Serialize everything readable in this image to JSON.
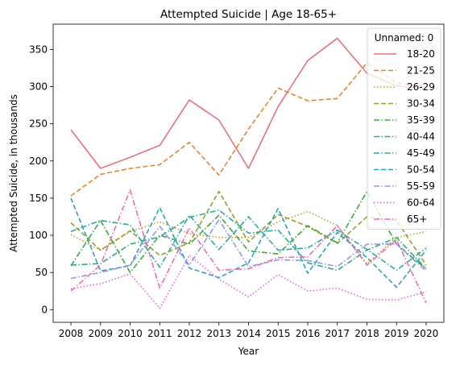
{
  "chart_data": {
    "type": "line",
    "title": "Attempted Suicide | Age 18-65+",
    "xlabel": "Year",
    "ylabel": "Attempted Suicide, in thousands",
    "x": [
      "2008",
      "2009",
      "2010",
      "2011",
      "2012",
      "2013",
      "2014",
      "2015",
      "2016",
      "2017",
      "2018",
      "2019",
      "2020"
    ],
    "ylim": [
      -17,
      384
    ],
    "yticks": [
      0,
      50,
      100,
      150,
      200,
      250,
      300,
      350
    ],
    "legend_title": "Unnamed: 0",
    "legend_position": "top-right",
    "grid": false,
    "series": [
      {
        "name": "18-20",
        "color": "#e8707e",
        "dash": "solid",
        "values": [
          242,
          190,
          205,
          221,
          282,
          255,
          190,
          273,
          335,
          365,
          318,
          301,
          297
        ]
      },
      {
        "name": "21-25",
        "color": "#dc8833",
        "dash": "dashed",
        "values": [
          153,
          182,
          190,
          195,
          225,
          181,
          243,
          298,
          281,
          284,
          332,
          305,
          300
        ]
      },
      {
        "name": "26-29",
        "color": "#c29b2c",
        "dash": "dotted",
        "values": [
          101,
          80,
          105,
          118,
          102,
          97,
          97,
          118,
          132,
          113,
          62,
          97,
          105
        ]
      },
      {
        "name": "30-34",
        "color": "#98a02d",
        "dash": "dashed",
        "values": [
          117,
          80,
          106,
          73,
          90,
          159,
          91,
          128,
          112,
          89,
          125,
          120,
          60
        ]
      },
      {
        "name": "35-39",
        "color": "#3ea840",
        "dash": "dashdot",
        "values": [
          59,
          120,
          50,
          100,
          88,
          127,
          79,
          75,
          113,
          90,
          159,
          88,
          55
        ]
      },
      {
        "name": "40-44",
        "color": "#2ea88c",
        "dash": "dashdot",
        "values": [
          60,
          62,
          88,
          98,
          124,
          134,
          103,
          107,
          63,
          53,
          80,
          97,
          55
        ]
      },
      {
        "name": "45-49",
        "color": "#2fa7a3",
        "dash": "dashdot",
        "values": [
          105,
          120,
          114,
          57,
          127,
          81,
          125,
          80,
          83,
          107,
          81,
          53,
          83
        ]
      },
      {
        "name": "50-54",
        "color": "#2ea3be",
        "dash": "dashed",
        "values": [
          150,
          52,
          59,
          137,
          56,
          43,
          63,
          136,
          49,
          104,
          70,
          30,
          80
        ]
      },
      {
        "name": "55-59",
        "color": "#9397e8",
        "dash": "dashdot",
        "values": [
          42,
          50,
          60,
          112,
          60,
          121,
          58,
          67,
          66,
          58,
          88,
          88,
          52
        ]
      },
      {
        "name": "60-64",
        "color": "#d966e0",
        "dash": "dotted",
        "values": [
          28,
          35,
          48,
          2,
          73,
          41,
          17,
          47,
          25,
          29,
          14,
          13,
          24
        ]
      },
      {
        "name": "65+",
        "color": "#f06bb0",
        "dash": "dashdot",
        "values": [
          25,
          60,
          161,
          29,
          110,
          53,
          55,
          70,
          71,
          113,
          60,
          94,
          9
        ]
      }
    ]
  }
}
